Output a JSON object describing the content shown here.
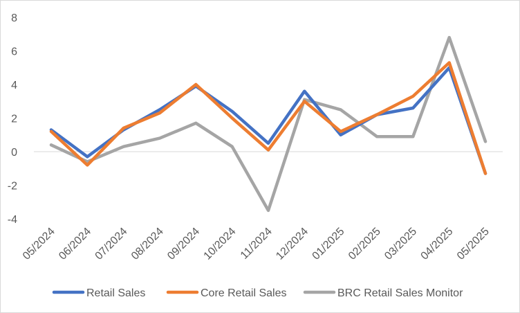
{
  "chart_data": {
    "type": "line",
    "title": "",
    "xlabel": "",
    "ylabel": "",
    "categories": [
      "05/2024",
      "06/2024",
      "07/2024",
      "08/2024",
      "09/2024",
      "10/2024",
      "11/2024",
      "12/2024",
      "01/2025",
      "02/2025",
      "03/2025",
      "04/2025",
      "05/2025"
    ],
    "ylim": [
      -4,
      8
    ],
    "yticks": [
      -4,
      -2,
      0,
      2,
      4,
      6,
      8
    ],
    "grid": false,
    "legend": "bottom",
    "series": [
      {
        "name": "Retail Sales",
        "color": "#4472C4",
        "values": [
          1.3,
          -0.3,
          1.3,
          2.5,
          3.9,
          2.4,
          0.5,
          3.6,
          1.0,
          2.2,
          2.6,
          5.0,
          -1.3
        ]
      },
      {
        "name": "Core Retail Sales",
        "color": "#ED7D31",
        "values": [
          1.2,
          -0.8,
          1.4,
          2.3,
          4.0,
          2.0,
          0.1,
          3.0,
          1.2,
          2.2,
          3.3,
          5.3,
          -1.3
        ]
      },
      {
        "name": "BRC Retail Sales Monitor",
        "color": "#A5A5A5",
        "values": [
          0.4,
          -0.6,
          0.3,
          0.8,
          1.7,
          0.3,
          -3.5,
          3.1,
          2.5,
          0.9,
          0.9,
          6.8,
          0.6
        ]
      }
    ]
  }
}
